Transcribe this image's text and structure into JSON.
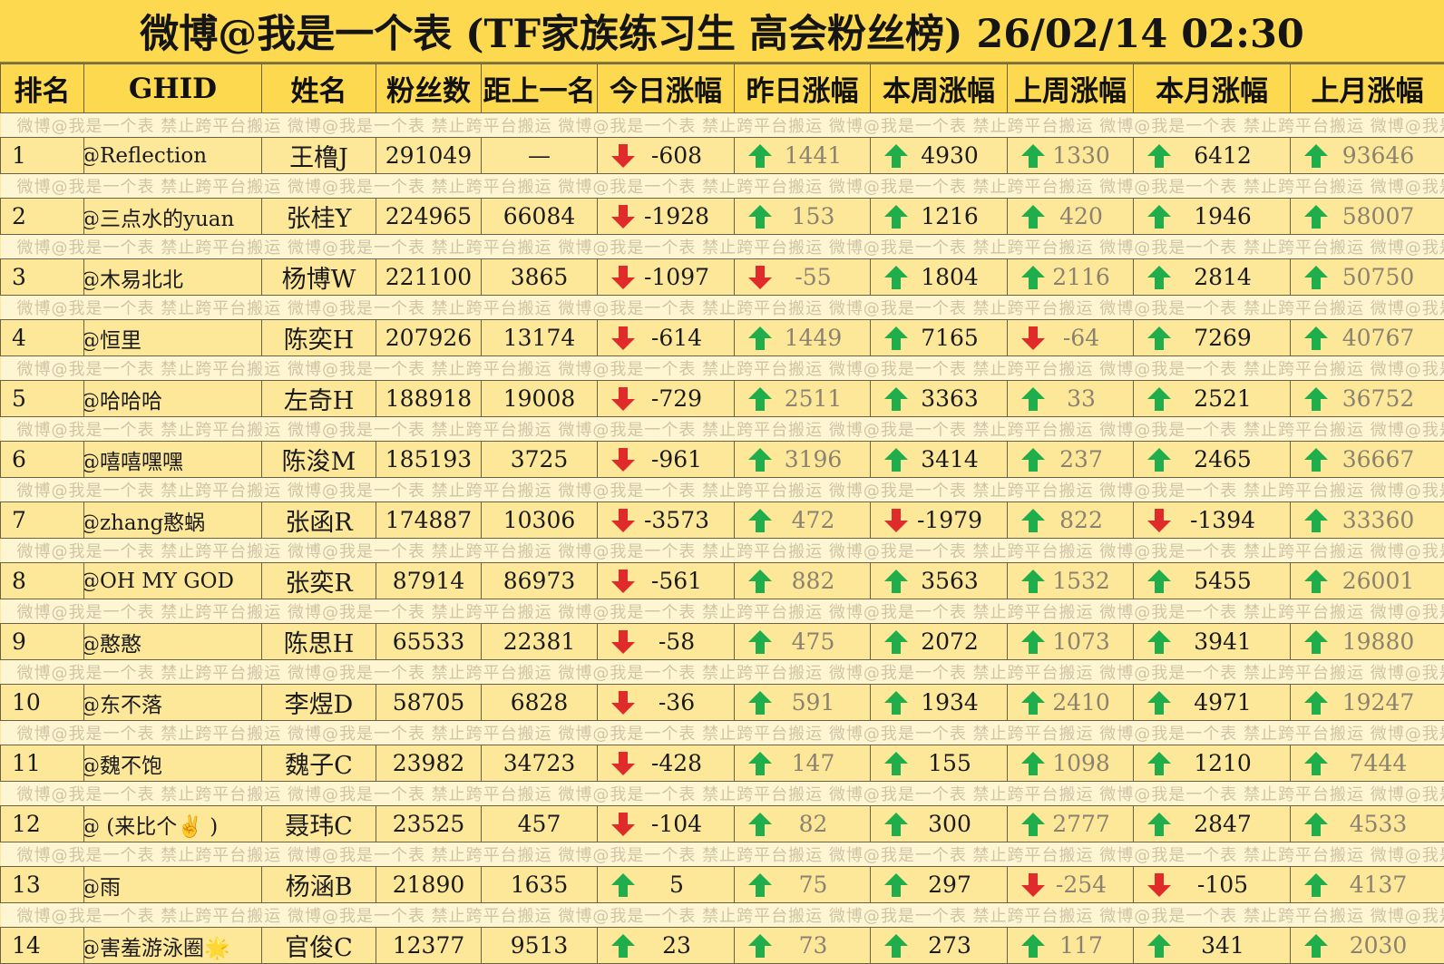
{
  "title": "微博@我是一个表 (TF家族练习生 高会粉丝榜)  26/02/14 02:30",
  "watermark": "微博@我是一个表    禁止跨平台搬运    微博@我是一个表    禁止跨平台搬运    微博@我是一个表    禁止跨平台搬运    微博@我是一个表    禁止跨平台搬运    微博@我是一个表    禁止跨平台搬运    微博@我是一个表",
  "headers": [
    "排名",
    "GHID",
    "姓名",
    "粉丝数",
    "距上一名",
    "今日涨幅",
    "昨日涨幅",
    "本周涨幅",
    "上周涨幅",
    "本月涨幅",
    "上月涨幅"
  ],
  "colors": {
    "up": "#1fae4b",
    "down": "#e02b2b",
    "accent_red": "#d42b2b"
  },
  "rows": [
    {
      "rank": "1",
      "ghid_mark": "-",
      "ghid": "@Reflection",
      "name": "王橹J",
      "fans": "291049",
      "gap": "—",
      "today": "-608",
      "yesterday": "1441",
      "week": "4930",
      "last_week": "1330",
      "month": "6412",
      "last_month": "93646"
    },
    {
      "rank": "2",
      "ghid_mark": "-",
      "ghid": "@三点水的yuan",
      "name": "张桂Y",
      "fans": "224965",
      "gap": "66084",
      "today": "-1928",
      "yesterday": "153",
      "week": "1216",
      "last_week": "420",
      "month": "1946",
      "last_month": "58007"
    },
    {
      "rank": "3",
      "ghid_mark": "-",
      "ghid": "@木易北北",
      "name": "杨博W",
      "fans": "221100",
      "gap": "3865",
      "today": "-1097",
      "yesterday": "-55",
      "week": "1804",
      "last_week": "2116",
      "month": "2814",
      "last_month": "50750"
    },
    {
      "rank": "4",
      "ghid_mark": "-",
      "ghid": "@恒里",
      "name": "陈奕H",
      "fans": "207926",
      "gap": "13174",
      "today": "-614",
      "yesterday": "1449",
      "week": "7165",
      "last_week": "-64",
      "month": "7269",
      "last_month": "40767"
    },
    {
      "rank": "5",
      "ghid_mark": "-",
      "ghid": "@哈哈哈",
      "name": "左奇H",
      "fans": "188918",
      "gap": "19008",
      "today": "-729",
      "yesterday": "2511",
      "week": "3363",
      "last_week": "33",
      "month": "2521",
      "last_month": "36752"
    },
    {
      "rank": "6",
      "ghid_mark": "-",
      "ghid": "@嘻嘻嘿嘿",
      "name": "陈浚M",
      "fans": "185193",
      "gap": "3725",
      "today": "-961",
      "yesterday": "3196",
      "week": "3414",
      "last_week": "237",
      "month": "2465",
      "last_month": "36667"
    },
    {
      "rank": "7",
      "ghid_mark": "-",
      "ghid": "@zhang憨蜗",
      "name": "张函R",
      "fans": "174887",
      "gap": "10306",
      "today": "-3573",
      "yesterday": "472",
      "week": "-1979",
      "last_week": "822",
      "month": "-1394",
      "last_month": "33360"
    },
    {
      "rank": "8",
      "ghid_mark": "-",
      "ghid": "@OH MY GOD",
      "name": "张奕R",
      "fans": "87914",
      "gap": "86973",
      "today": "-561",
      "yesterday": "882",
      "week": "3563",
      "last_week": "1532",
      "month": "5455",
      "last_month": "26001"
    },
    {
      "rank": "9",
      "ghid_mark": "-",
      "ghid": "@憨憨",
      "name": "陈思H",
      "fans": "65533",
      "gap": "22381",
      "today": "-58",
      "yesterday": "475",
      "week": "2072",
      "last_week": "1073",
      "month": "3941",
      "last_month": "19880"
    },
    {
      "rank": "10",
      "ghid_mark": "-",
      "ghid": "@东不落",
      "name": "李煜D",
      "fans": "58705",
      "gap": "6828",
      "today": "-36",
      "yesterday": "591",
      "week": "1934",
      "last_week": "2410",
      "month": "4971",
      "last_month": "19247"
    },
    {
      "rank": "11",
      "ghid_mark": "-",
      "ghid": "@魏不饱",
      "name": "魏子C",
      "fans": "23982",
      "gap": "34723",
      "today": "-428",
      "yesterday": "147",
      "week": "155",
      "last_week": "1098",
      "month": "1210",
      "last_month": "7444"
    },
    {
      "rank": "12",
      "ghid_mark": "-",
      "ghid": "@ (来比个✌️ )",
      "name": "聂玮C",
      "fans": "23525",
      "gap": "457",
      "today": "-104",
      "yesterday": "82",
      "week": "300",
      "last_week": "2777",
      "month": "2847",
      "last_month": "4533"
    },
    {
      "rank": "13",
      "ghid_mark": "-",
      "ghid": "@雨",
      "name": "杨涵B",
      "fans": "21890",
      "gap": "1635",
      "today": "5",
      "yesterday": "75",
      "week": "297",
      "last_week": "-254",
      "month": "-105",
      "last_month": "4137"
    },
    {
      "rank": "14",
      "ghid_mark": "-",
      "ghid": "@害羞游泳圈🌟",
      "name": "官俊C",
      "fans": "12377",
      "gap": "9513",
      "today": "23",
      "yesterday": "73",
      "week": "273",
      "last_week": "117",
      "month": "341",
      "last_month": "2030"
    }
  ]
}
